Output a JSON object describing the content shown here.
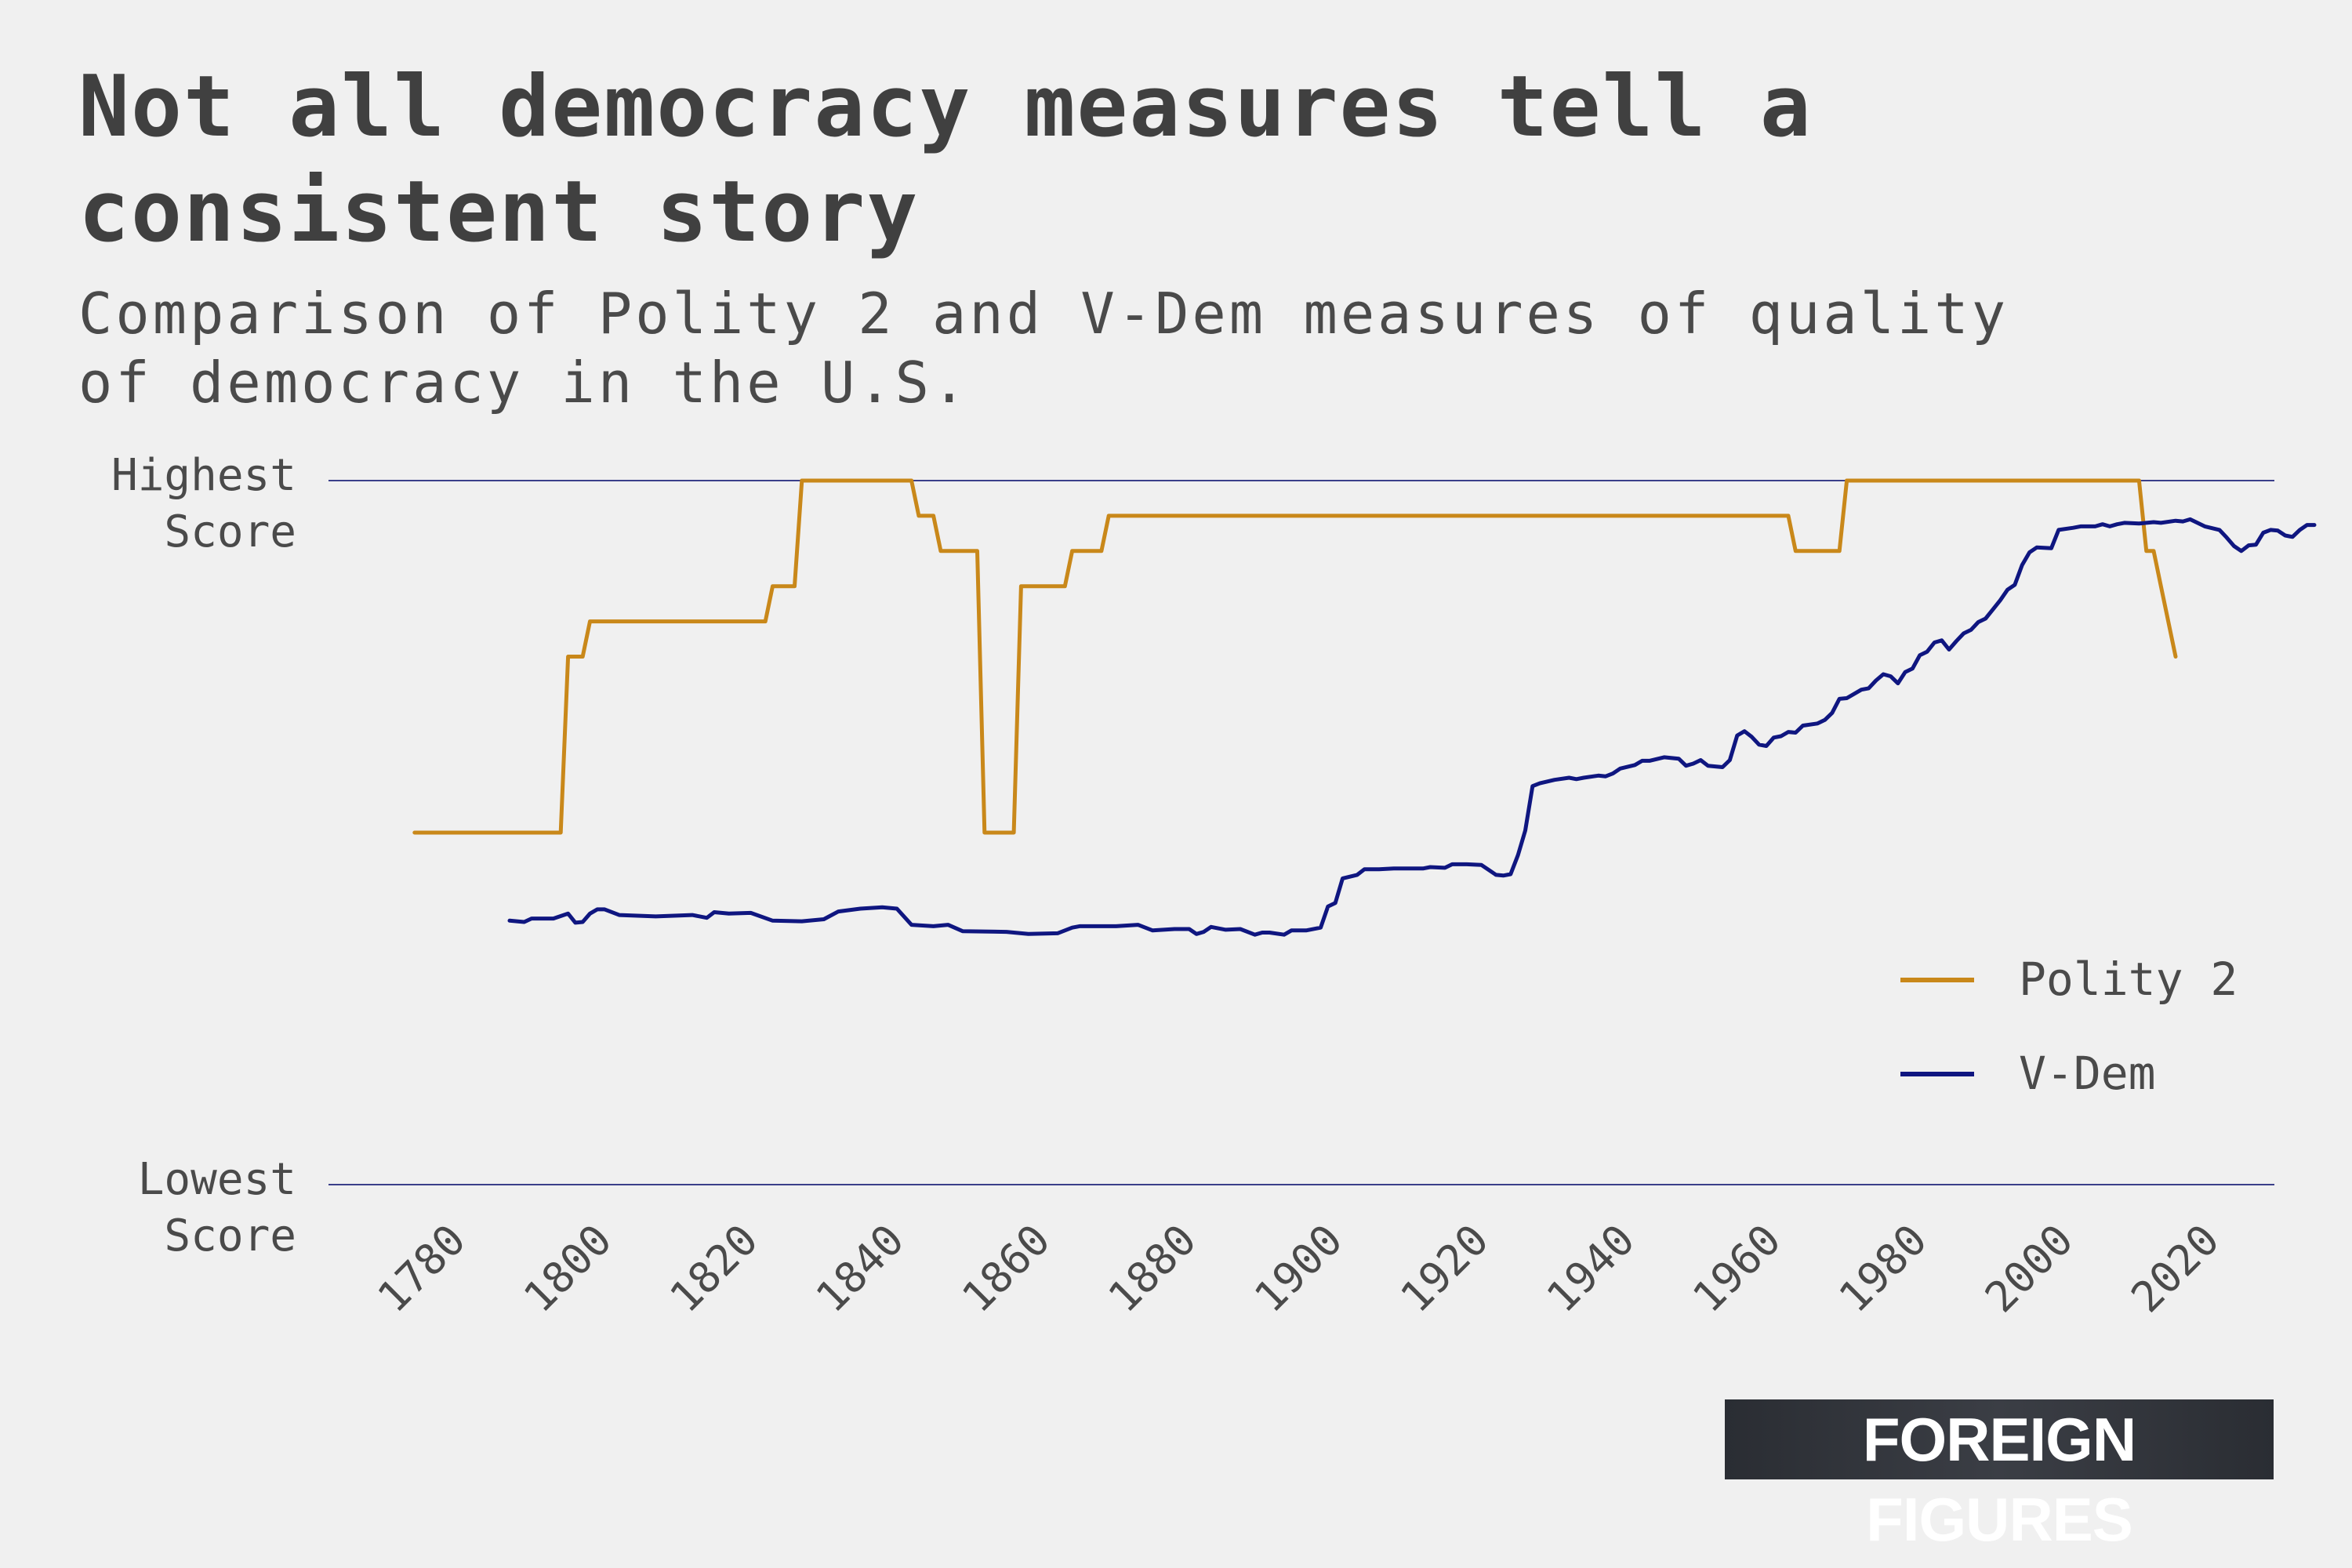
{
  "title": "Not all democracy measures tell a consistent story",
  "subtitle": "Comparison of Polity 2 and V-Dem measures of quality of democracy in the U.S.",
  "logo_text": "FOREIGN FIGURES",
  "chart_data": {
    "type": "line",
    "title": "Not all democracy measures tell a consistent story",
    "subtitle": "Comparison of Polity 2 and V-Dem measures of quality of democracy in the U.S.",
    "xlabel": "",
    "ylabel": "",
    "xlim": [
      1765,
      2035
    ],
    "ylim": [
      0,
      1
    ],
    "x_ticks": [
      1780,
      1800,
      1820,
      1840,
      1860,
      1880,
      1900,
      1920,
      1940,
      1960,
      1980,
      2000,
      2020
    ],
    "y_tick_labels": [
      {
        "value": 1,
        "lines": [
          "Highest",
          "Score"
        ]
      },
      {
        "value": 0,
        "lines": [
          "Lowest",
          "Score"
        ]
      }
    ],
    "grid": "horizontal lines at lowest and highest score",
    "legend_position": "right",
    "series": [
      {
        "name": "Polity 2",
        "color": "#c9881a",
        "points": [
          [
            1777,
            0.5
          ],
          [
            1797,
            0.5
          ],
          [
            1798,
            0.75
          ],
          [
            1800,
            0.75
          ],
          [
            1801,
            0.8
          ],
          [
            1825,
            0.8
          ],
          [
            1826,
            0.85
          ],
          [
            1829,
            0.85
          ],
          [
            1830,
            1.0
          ],
          [
            1845,
            1.0
          ],
          [
            1846,
            0.95
          ],
          [
            1848,
            0.95
          ],
          [
            1849,
            0.9
          ],
          [
            1854,
            0.9
          ],
          [
            1855,
            0.5
          ],
          [
            1859,
            0.5
          ],
          [
            1860,
            0.85
          ],
          [
            1866,
            0.85
          ],
          [
            1867,
            0.9
          ],
          [
            1871,
            0.9
          ],
          [
            1872,
            0.95
          ],
          [
            1965,
            0.95
          ],
          [
            1966,
            0.9
          ],
          [
            1972,
            0.9
          ],
          [
            1973,
            1.0
          ],
          [
            2013,
            1.0
          ],
          [
            2014,
            0.9
          ],
          [
            2015,
            0.9
          ],
          [
            2016,
            0.85
          ],
          [
            2018,
            0.75
          ]
        ]
      },
      {
        "name": "V-Dem",
        "color": "#0f1680",
        "points": [
          [
            1790,
            0.375
          ],
          [
            1792,
            0.373
          ],
          [
            1793,
            0.378
          ],
          [
            1796,
            0.378
          ],
          [
            1798,
            0.385
          ],
          [
            1799,
            0.372
          ],
          [
            1800,
            0.373
          ],
          [
            1801,
            0.385
          ],
          [
            1802,
            0.391
          ],
          [
            1803,
            0.391
          ],
          [
            1805,
            0.383
          ],
          [
            1810,
            0.381
          ],
          [
            1815,
            0.383
          ],
          [
            1817,
            0.379
          ],
          [
            1818,
            0.387
          ],
          [
            1820,
            0.385
          ],
          [
            1823,
            0.386
          ],
          [
            1826,
            0.375
          ],
          [
            1830,
            0.374
          ],
          [
            1833,
            0.377
          ],
          [
            1835,
            0.388
          ],
          [
            1838,
            0.392
          ],
          [
            1841,
            0.394
          ],
          [
            1843,
            0.392
          ],
          [
            1845,
            0.369
          ],
          [
            1848,
            0.367
          ],
          [
            1850,
            0.369
          ],
          [
            1852,
            0.36
          ],
          [
            1858,
            0.359
          ],
          [
            1861,
            0.356
          ],
          [
            1865,
            0.357
          ],
          [
            1867,
            0.365
          ],
          [
            1868,
            0.367
          ],
          [
            1873,
            0.367
          ],
          [
            1876,
            0.369
          ],
          [
            1878,
            0.361
          ],
          [
            1881,
            0.363
          ],
          [
            1883,
            0.363
          ],
          [
            1884,
            0.356
          ],
          [
            1885,
            0.359
          ],
          [
            1886,
            0.366
          ],
          [
            1888,
            0.362
          ],
          [
            1890,
            0.363
          ],
          [
            1892,
            0.355
          ],
          [
            1893,
            0.358
          ],
          [
            1894,
            0.358
          ],
          [
            1896,
            0.355
          ],
          [
            1897,
            0.361
          ],
          [
            1899,
            0.361
          ],
          [
            1901,
            0.365
          ],
          [
            1902,
            0.395
          ],
          [
            1903,
            0.4
          ],
          [
            1904,
            0.435
          ],
          [
            1906,
            0.44
          ],
          [
            1907,
            0.448
          ],
          [
            1909,
            0.448
          ],
          [
            1911,
            0.449
          ],
          [
            1915,
            0.449
          ],
          [
            1916,
            0.451
          ],
          [
            1918,
            0.45
          ],
          [
            1919,
            0.455
          ],
          [
            1921,
            0.455
          ],
          [
            1923,
            0.454
          ],
          [
            1925,
            0.44
          ],
          [
            1926,
            0.439
          ],
          [
            1927,
            0.441
          ],
          [
            1928,
            0.468
          ],
          [
            1929,
            0.503
          ],
          [
            1930,
            0.566
          ],
          [
            1931,
            0.57
          ],
          [
            1933,
            0.575
          ],
          [
            1935,
            0.578
          ],
          [
            1936,
            0.576
          ],
          [
            1937,
            0.578
          ],
          [
            1939,
            0.581
          ],
          [
            1940,
            0.58
          ],
          [
            1941,
            0.584
          ],
          [
            1942,
            0.591
          ],
          [
            1944,
            0.596
          ],
          [
            1945,
            0.602
          ],
          [
            1946,
            0.602
          ],
          [
            1948,
            0.607
          ],
          [
            1950,
            0.605
          ],
          [
            1951,
            0.595
          ],
          [
            1952,
            0.598
          ],
          [
            1953,
            0.603
          ],
          [
            1954,
            0.595
          ],
          [
            1956,
            0.593
          ],
          [
            1957,
            0.603
          ],
          [
            1958,
            0.638
          ],
          [
            1959,
            0.644
          ],
          [
            1960,
            0.636
          ],
          [
            1961,
            0.625
          ],
          [
            1962,
            0.623
          ],
          [
            1963,
            0.635
          ],
          [
            1964,
            0.637
          ],
          [
            1965,
            0.643
          ],
          [
            1966,
            0.642
          ],
          [
            1967,
            0.652
          ],
          [
            1969,
            0.655
          ],
          [
            1970,
            0.66
          ],
          [
            1971,
            0.67
          ],
          [
            1972,
            0.69
          ],
          [
            1973,
            0.691
          ],
          [
            1975,
            0.703
          ],
          [
            1976,
            0.705
          ],
          [
            1977,
            0.716
          ],
          [
            1978,
            0.725
          ],
          [
            1979,
            0.722
          ],
          [
            1980,
            0.712
          ],
          [
            1981,
            0.728
          ],
          [
            1982,
            0.733
          ],
          [
            1983,
            0.752
          ],
          [
            1984,
            0.757
          ],
          [
            1985,
            0.77
          ],
          [
            1986,
            0.773
          ],
          [
            1987,
            0.76
          ],
          [
            1988,
            0.772
          ],
          [
            1989,
            0.783
          ],
          [
            1990,
            0.788
          ],
          [
            1991,
            0.799
          ],
          [
            1992,
            0.804
          ],
          [
            1993,
            0.817
          ],
          [
            1994,
            0.83
          ],
          [
            1995,
            0.845
          ],
          [
            1996,
            0.852
          ],
          [
            1997,
            0.88
          ],
          [
            1998,
            0.898
          ],
          [
            1999,
            0.905
          ],
          [
            2001,
            0.904
          ],
          [
            2002,
            0.93
          ],
          [
            2004,
            0.933
          ],
          [
            2005,
            0.935
          ],
          [
            2007,
            0.935
          ],
          [
            2008,
            0.938
          ],
          [
            2009,
            0.935
          ],
          [
            2010,
            0.938
          ],
          [
            2011,
            0.94
          ],
          [
            2013,
            0.939
          ],
          [
            2015,
            0.941
          ],
          [
            2016,
            0.94
          ],
          [
            2018,
            0.943
          ],
          [
            2019,
            0.942
          ],
          [
            2020,
            0.945
          ],
          [
            2021,
            0.94
          ],
          [
            2022,
            0.935
          ],
          [
            2024,
            0.93
          ],
          [
            2025,
            0.919
          ],
          [
            2026,
            0.907
          ],
          [
            2027,
            0.9
          ],
          [
            2028,
            0.908
          ],
          [
            2029,
            0.909
          ],
          [
            2030,
            0.926
          ],
          [
            2031,
            0.93
          ],
          [
            2032,
            0.929
          ],
          [
            2033,
            0.922
          ],
          [
            2034,
            0.92
          ],
          [
            2035,
            0.93
          ],
          [
            2036,
            0.937
          ],
          [
            2037,
            0.937
          ]
        ]
      }
    ]
  }
}
